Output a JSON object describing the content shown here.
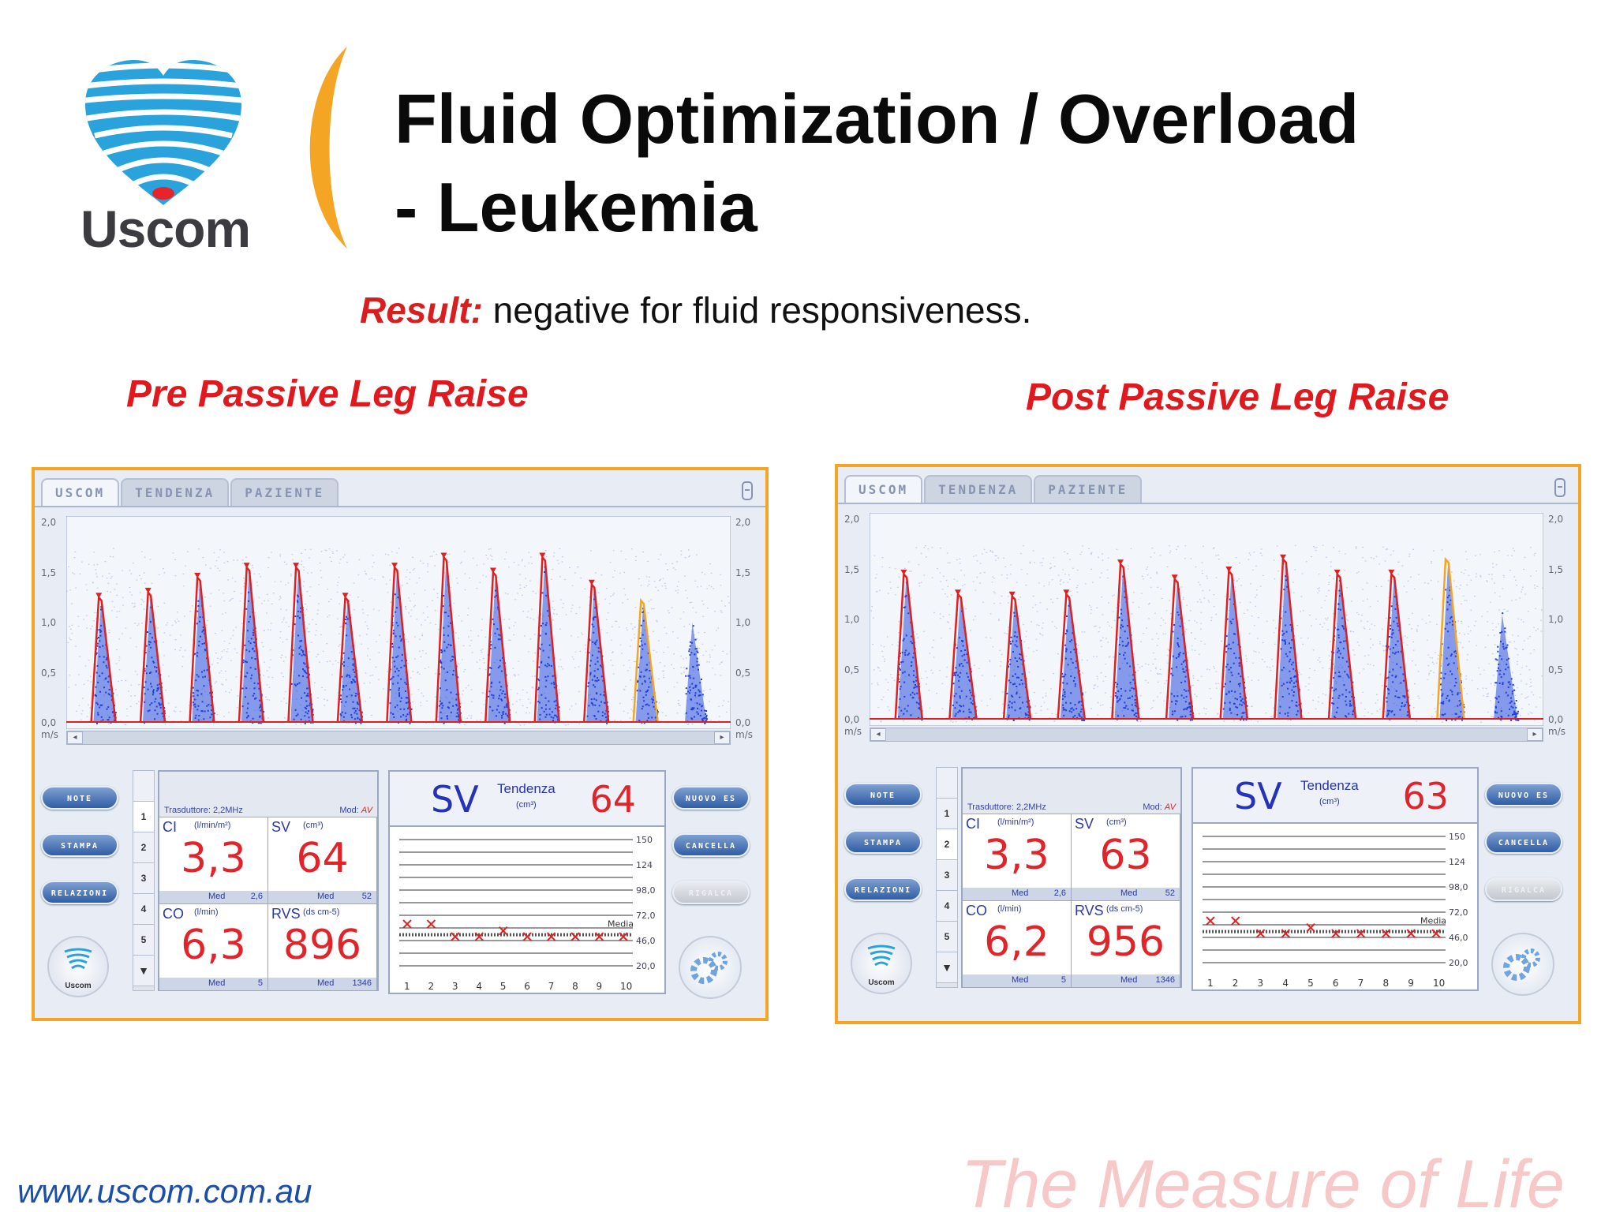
{
  "header": {
    "logo_text": "Uscom",
    "title_line1": "Fluid Optimization / Overload",
    "title_line2": "- Leukemia"
  },
  "result": {
    "label": "Result:",
    "text": " negative for fluid responsiveness."
  },
  "colors": {
    "accent_red": "#e0191e",
    "panel_border": "#f4a523",
    "trace_blue": "#1f3fd6",
    "envelope_red": "#e02020",
    "url_blue": "#1b4ea8",
    "tagline_pink": "#f6c8c8"
  },
  "panels": [
    {
      "caption": "Pre Passive Leg Raise",
      "tabs": [
        "USCOM",
        "TENDENZA",
        "PAZIENTE"
      ],
      "yaxis_left": [
        "2,0",
        "1,5",
        "1,0",
        "0,5",
        "0,0",
        "m/s"
      ],
      "yaxis_right": [
        "2,0",
        "1,5",
        "1,0",
        "0,5",
        "0,0",
        "m/s"
      ],
      "peaks": [
        1.25,
        1.3,
        1.45,
        1.55,
        1.55,
        1.25,
        1.55,
        1.65,
        1.5,
        1.65,
        1.38,
        1.22,
        1.05
      ],
      "buttons_left": [
        "NOTE",
        "STAMPA",
        "RELAZIONI"
      ],
      "logo_label": "Uscom",
      "beat_numbers": [
        "1",
        "2",
        "3",
        "4",
        "5",
        "▼"
      ],
      "probe": "Trasduttore: 2,2MHz",
      "mode_label": "Mod:",
      "mode_value": "AV",
      "cells": [
        {
          "name": "CI",
          "unit": "(l/min/m²)",
          "value": "3,3",
          "med_label": "Med",
          "med_value": "2,6"
        },
        {
          "name": "SV",
          "unit": "(cm³)",
          "value": "64",
          "med_label": "Med",
          "med_value": "52"
        },
        {
          "name": "CO",
          "unit": "(l/min)",
          "value": "6,3",
          "med_label": "Med",
          "med_value": "5"
        },
        {
          "name": "RVS",
          "unit": "(ds cm-5)",
          "value": "896",
          "med_label": "Med",
          "med_value": "1346"
        }
      ],
      "trend": {
        "param": "SV",
        "title": "Tendenza",
        "unit": "(cm³)",
        "value": "64",
        "scale": [
          "150",
          "124",
          "98,0",
          "72,0",
          "46,0",
          "20,0"
        ],
        "media_label": "Media",
        "x": [
          "1",
          "2",
          "3",
          "4",
          "5",
          "6",
          "7",
          "8",
          "9",
          "10"
        ],
        "points": [
          63,
          63,
          50,
          50,
          56,
          50,
          50,
          50,
          50,
          50
        ],
        "media": 52
      },
      "buttons_right": [
        "NUOVO ES",
        "CANCELLA",
        "RIGALCA"
      ]
    },
    {
      "caption": "Post Passive Leg Raise",
      "tabs": [
        "USCOM",
        "TENDENZA",
        "PAZIENTE"
      ],
      "yaxis_left": [
        "2,0",
        "1,5",
        "1,0",
        "0,5",
        "0,0",
        "m/s"
      ],
      "yaxis_right": [
        "2,0",
        "1,5",
        "1,0",
        "0,5",
        "0,0",
        "m/s"
      ],
      "peaks": [
        1.45,
        1.25,
        1.23,
        1.25,
        1.55,
        1.4,
        1.48,
        1.6,
        1.45,
        1.45,
        1.6,
        1.1
      ],
      "buttons_left": [
        "NOTE",
        "STAMPA",
        "RELAZIONI"
      ],
      "logo_label": "Uscom",
      "beat_numbers": [
        "1",
        "2",
        "3",
        "4",
        "5",
        "▼"
      ],
      "probe": "Trasduttore: 2,2MHz",
      "mode_label": "Mod:",
      "mode_value": "AV",
      "cells": [
        {
          "name": "CI",
          "unit": "(l/min/m²)",
          "value": "3,3",
          "med_label": "Med",
          "med_value": "2,6"
        },
        {
          "name": "SV",
          "unit": "(cm³)",
          "value": "63",
          "med_label": "Med",
          "med_value": "52"
        },
        {
          "name": "CO",
          "unit": "(l/min)",
          "value": "6,2",
          "med_label": "Med",
          "med_value": "5"
        },
        {
          "name": "RVS",
          "unit": "(ds cm-5)",
          "value": "956",
          "med_label": "Med",
          "med_value": "1346"
        }
      ],
      "trend": {
        "param": "SV",
        "title": "Tendenza",
        "unit": "(cm³)",
        "value": "63",
        "scale": [
          "150",
          "124",
          "98,0",
          "72,0",
          "46,0",
          "20,0"
        ],
        "media_label": "Media",
        "x": [
          "1",
          "2",
          "3",
          "4",
          "5",
          "6",
          "7",
          "8",
          "9",
          "10"
        ],
        "points": [
          63,
          63,
          50,
          50,
          56,
          50,
          50,
          50,
          50,
          50
        ],
        "media": 52
      },
      "buttons_right": [
        "NUOVO ES",
        "CANCELLA",
        "RIGALCA"
      ]
    }
  ],
  "footer": {
    "url": "www.uscom.com.au",
    "tagline": "The Measure of Life"
  }
}
